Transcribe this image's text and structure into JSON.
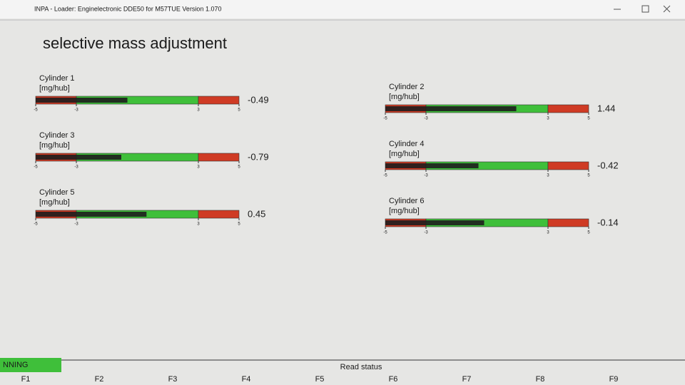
{
  "window": {
    "title": "INPA - Loader: Enginelectronic DDE50 for M57TUE Version 1.070"
  },
  "header": {
    "title": "selective mass adjustment"
  },
  "scale": {
    "lim": [
      -5,
      5
    ],
    "ticks": [
      -5,
      -3,
      3,
      5
    ],
    "green_range": [
      -3,
      3
    ]
  },
  "colors": {
    "bar": "#1e1e1e",
    "green": "#3fbf3a",
    "red": "#cf3b24"
  },
  "gauges": [
    {
      "label": "Cylinder 1",
      "unit": "[mg/hub]",
      "value": -0.49
    },
    {
      "label": "Cylinder 2",
      "unit": "[mg/hub]",
      "value": 1.44
    },
    {
      "label": "Cylinder 3",
      "unit": "[mg/hub]",
      "value": -0.79
    },
    {
      "label": "Cylinder 4",
      "unit": "[mg/hub]",
      "value": -0.42
    },
    {
      "label": "Cylinder 5",
      "unit": "[mg/hub]",
      "value": 0.45
    },
    {
      "label": "Cylinder 6",
      "unit": "[mg/hub]",
      "value": -0.14
    }
  ],
  "status": {
    "state": "NNING",
    "text": "Read status"
  },
  "function_keys": [
    "F1",
    "F2",
    "F3",
    "F4",
    "F5",
    "F6",
    "F7",
    "F8",
    "F9"
  ]
}
